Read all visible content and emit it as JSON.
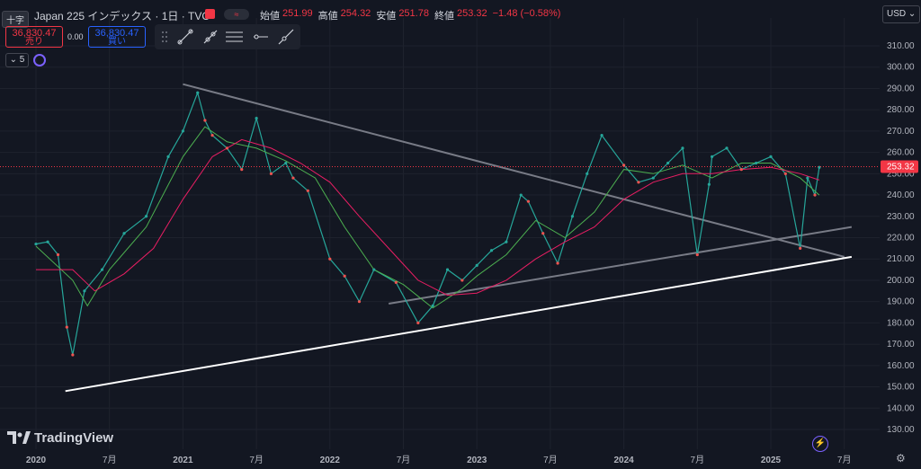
{
  "header": {
    "crosshair_label": "十字",
    "symbol_title": "Japan 225 インデックス · 1日 · TVC",
    "toggle_label": "≈",
    "ohlc": [
      {
        "key": "始値",
        "value": "251.99"
      },
      {
        "key": "高値",
        "value": "254.32"
      },
      {
        "key": "安値",
        "value": "251.78"
      },
      {
        "key": "終値",
        "value": "253.32"
      },
      {
        "key": "",
        "value": "−1.48 (−0.58%)"
      }
    ],
    "currency": "USD",
    "interval": "5"
  },
  "trade": {
    "sell_price": "36,830.47",
    "sell_label": "売り",
    "spread": "0.00",
    "buy_price": "36,830.47",
    "buy_label": "買い"
  },
  "toolbar_icons": [
    "trend-line-icon",
    "ray-icon",
    "parallel-channel-icon",
    "horizontal-ray-icon",
    "extended-line-icon"
  ],
  "branding": {
    "logo_text": "TradingView"
  },
  "colors": {
    "background": "#131722",
    "up": "#26a69a",
    "down": "#ef5350",
    "ma_fast": "#4caf50",
    "ma_slow": "#e91e63",
    "trendline_gray": "#787b86",
    "trendline_white": "#ffffff",
    "price_tag": "#f23645"
  },
  "chart_data": {
    "type": "line",
    "title": "Japan 225 インデックス · 1日 · TVC",
    "last_price_label": "253.32",
    "y_axis": {
      "min": 130,
      "max": 310,
      "ticks": [
        "130.00",
        "140.00",
        "150.00",
        "160.00",
        "170.00",
        "180.00",
        "190.00",
        "200.00",
        "210.00",
        "220.00",
        "230.00",
        "240.00",
        "250.00",
        "260.00",
        "270.00",
        "280.00",
        "290.00",
        "300.00",
        "310.00"
      ]
    },
    "x_axis": {
      "ticks": [
        "2020",
        "7月",
        "2021",
        "7月",
        "2022",
        "7月",
        "2023",
        "7月",
        "2024",
        "7月",
        "2025",
        "7月"
      ]
    },
    "series": [
      {
        "name": "",
        "x": [
          2020.0,
          2020.08,
          2020.15,
          2020.21,
          2020.25,
          2020.33,
          2020.45,
          2020.6,
          2020.75,
          2020.9,
          2021.0,
          2021.1,
          2021.15,
          2021.2,
          2021.3,
          2021.4,
          2021.5,
          2021.6,
          2021.7,
          2021.75,
          2021.85,
          2022.0,
          2022.1,
          2022.2,
          2022.3,
          2022.45,
          2022.6,
          2022.7,
          2022.8,
          2022.9,
          2023.0,
          2023.1,
          2023.2,
          2023.3,
          2023.35,
          2023.45,
          2023.55,
          2023.65,
          2023.75,
          2023.85,
          2024.0,
          2024.1,
          2024.2,
          2024.3,
          2024.4,
          2024.5,
          2024.58,
          2024.6,
          2024.7,
          2024.8,
          2024.9,
          2025.0,
          2025.1,
          2025.2,
          2025.25,
          2025.3,
          2025.33
        ],
        "values": [
          217,
          218,
          212,
          178,
          165,
          195,
          205,
          222,
          230,
          258,
          270,
          288,
          275,
          268,
          262,
          252,
          276,
          250,
          255,
          248,
          242,
          210,
          202,
          190,
          205,
          199,
          180,
          188,
          205,
          200,
          207,
          214,
          218,
          240,
          237,
          222,
          208,
          230,
          250,
          268,
          254,
          246,
          248,
          255,
          262,
          212,
          245,
          258,
          262,
          252,
          255,
          258,
          250,
          215,
          248,
          240,
          253
        ]
      },
      {
        "name": "",
        "x": [
          2020.0,
          2020.25,
          2020.35,
          2020.5,
          2020.75,
          2021.0,
          2021.15,
          2021.3,
          2021.5,
          2021.7,
          2021.9,
          2022.1,
          2022.3,
          2022.5,
          2022.7,
          2022.9,
          2023.0,
          2023.2,
          2023.4,
          2023.6,
          2023.8,
          2024.0,
          2024.2,
          2024.4,
          2024.6,
          2024.8,
          2025.0,
          2025.2,
          2025.33
        ],
        "values": [
          216,
          200,
          188,
          205,
          225,
          258,
          272,
          265,
          262,
          256,
          248,
          225,
          205,
          198,
          187,
          196,
          202,
          212,
          228,
          220,
          232,
          252,
          250,
          254,
          248,
          255,
          255,
          248,
          240
        ]
      },
      {
        "name": "",
        "x": [
          2020.0,
          2020.25,
          2020.4,
          2020.6,
          2020.8,
          2021.0,
          2021.2,
          2021.4,
          2021.6,
          2021.8,
          2022.0,
          2022.2,
          2022.4,
          2022.6,
          2022.8,
          2023.0,
          2023.2,
          2023.4,
          2023.6,
          2023.8,
          2024.0,
          2024.2,
          2024.4,
          2024.6,
          2024.8,
          2025.0,
          2025.2,
          2025.33
        ],
        "values": [
          205,
          205,
          195,
          203,
          215,
          238,
          258,
          266,
          262,
          255,
          246,
          230,
          215,
          200,
          193,
          194,
          200,
          210,
          218,
          225,
          238,
          246,
          250,
          250,
          252,
          253,
          250,
          247
        ]
      }
    ],
    "annotations": [
      {
        "type": "trendline",
        "x": [
          2021.0,
          2025.5
        ],
        "y": [
          292,
          211
        ]
      },
      {
        "type": "trendline",
        "x": [
          2022.4,
          2025.55
        ],
        "y": [
          189,
          225
        ]
      },
      {
        "type": "trendline",
        "x": [
          2020.2,
          2025.55
        ],
        "y": [
          148,
          211
        ]
      }
    ],
    "grid": true
  }
}
